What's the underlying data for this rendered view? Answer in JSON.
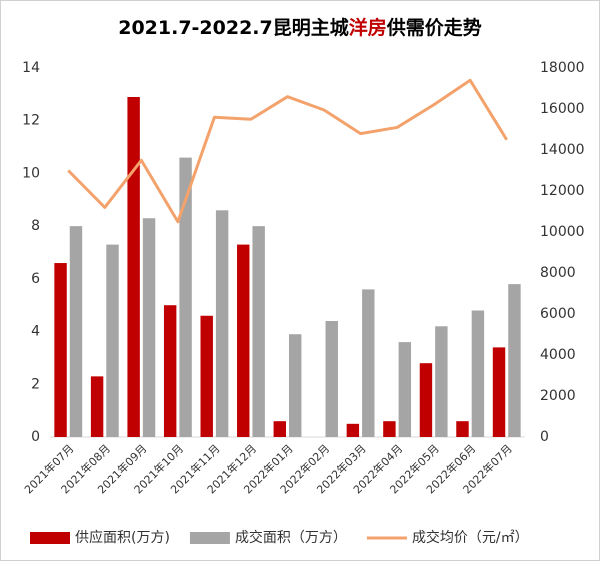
{
  "chart_data": {
    "type": "bar-line",
    "title": [
      "2021.7-2022.7昆明主城",
      "洋房",
      "供需价走势"
    ],
    "title_colors": [
      "#000000",
      "#c00000",
      "#000000"
    ],
    "categories": [
      "2021年07月",
      "2021年08月",
      "2021年09月",
      "2021年10月",
      "2021年11月",
      "2021年12月",
      "2022年01月",
      "2022年02月",
      "2022年03月",
      "2022年04月",
      "2022年05月",
      "2022年06月",
      "2022年07月"
    ],
    "series": [
      {
        "name": "供应面积(万方)",
        "type": "bar",
        "color": "#c00000",
        "values": [
          6.6,
          2.3,
          12.9,
          5.0,
          4.6,
          7.3,
          0.6,
          0,
          0.5,
          0.6,
          2.8,
          0.6,
          3.4
        ]
      },
      {
        "name": "成交面积（万方）",
        "type": "bar",
        "color": "#a5a5a5",
        "values": [
          8.0,
          7.3,
          8.3,
          10.6,
          8.6,
          8.0,
          3.9,
          4.4,
          5.6,
          3.6,
          4.2,
          4.8,
          5.8
        ]
      },
      {
        "name": "成交均价（元/㎡）",
        "type": "line",
        "axis": "y2",
        "color": "#f4a26c",
        "values": [
          13000,
          11200,
          13500,
          10500,
          15600,
          15500,
          16600,
          15950,
          14800,
          15100,
          16200,
          17400,
          14500
        ]
      }
    ],
    "ylim": [
      0,
      14
    ],
    "yticks": [
      0,
      2,
      4,
      6,
      8,
      10,
      12,
      14
    ],
    "y2lim": [
      0,
      18000
    ],
    "y2ticks": [
      0,
      2000,
      4000,
      6000,
      8000,
      10000,
      12000,
      14000,
      16000,
      18000
    ],
    "grid": false,
    "legend": "bottom"
  }
}
